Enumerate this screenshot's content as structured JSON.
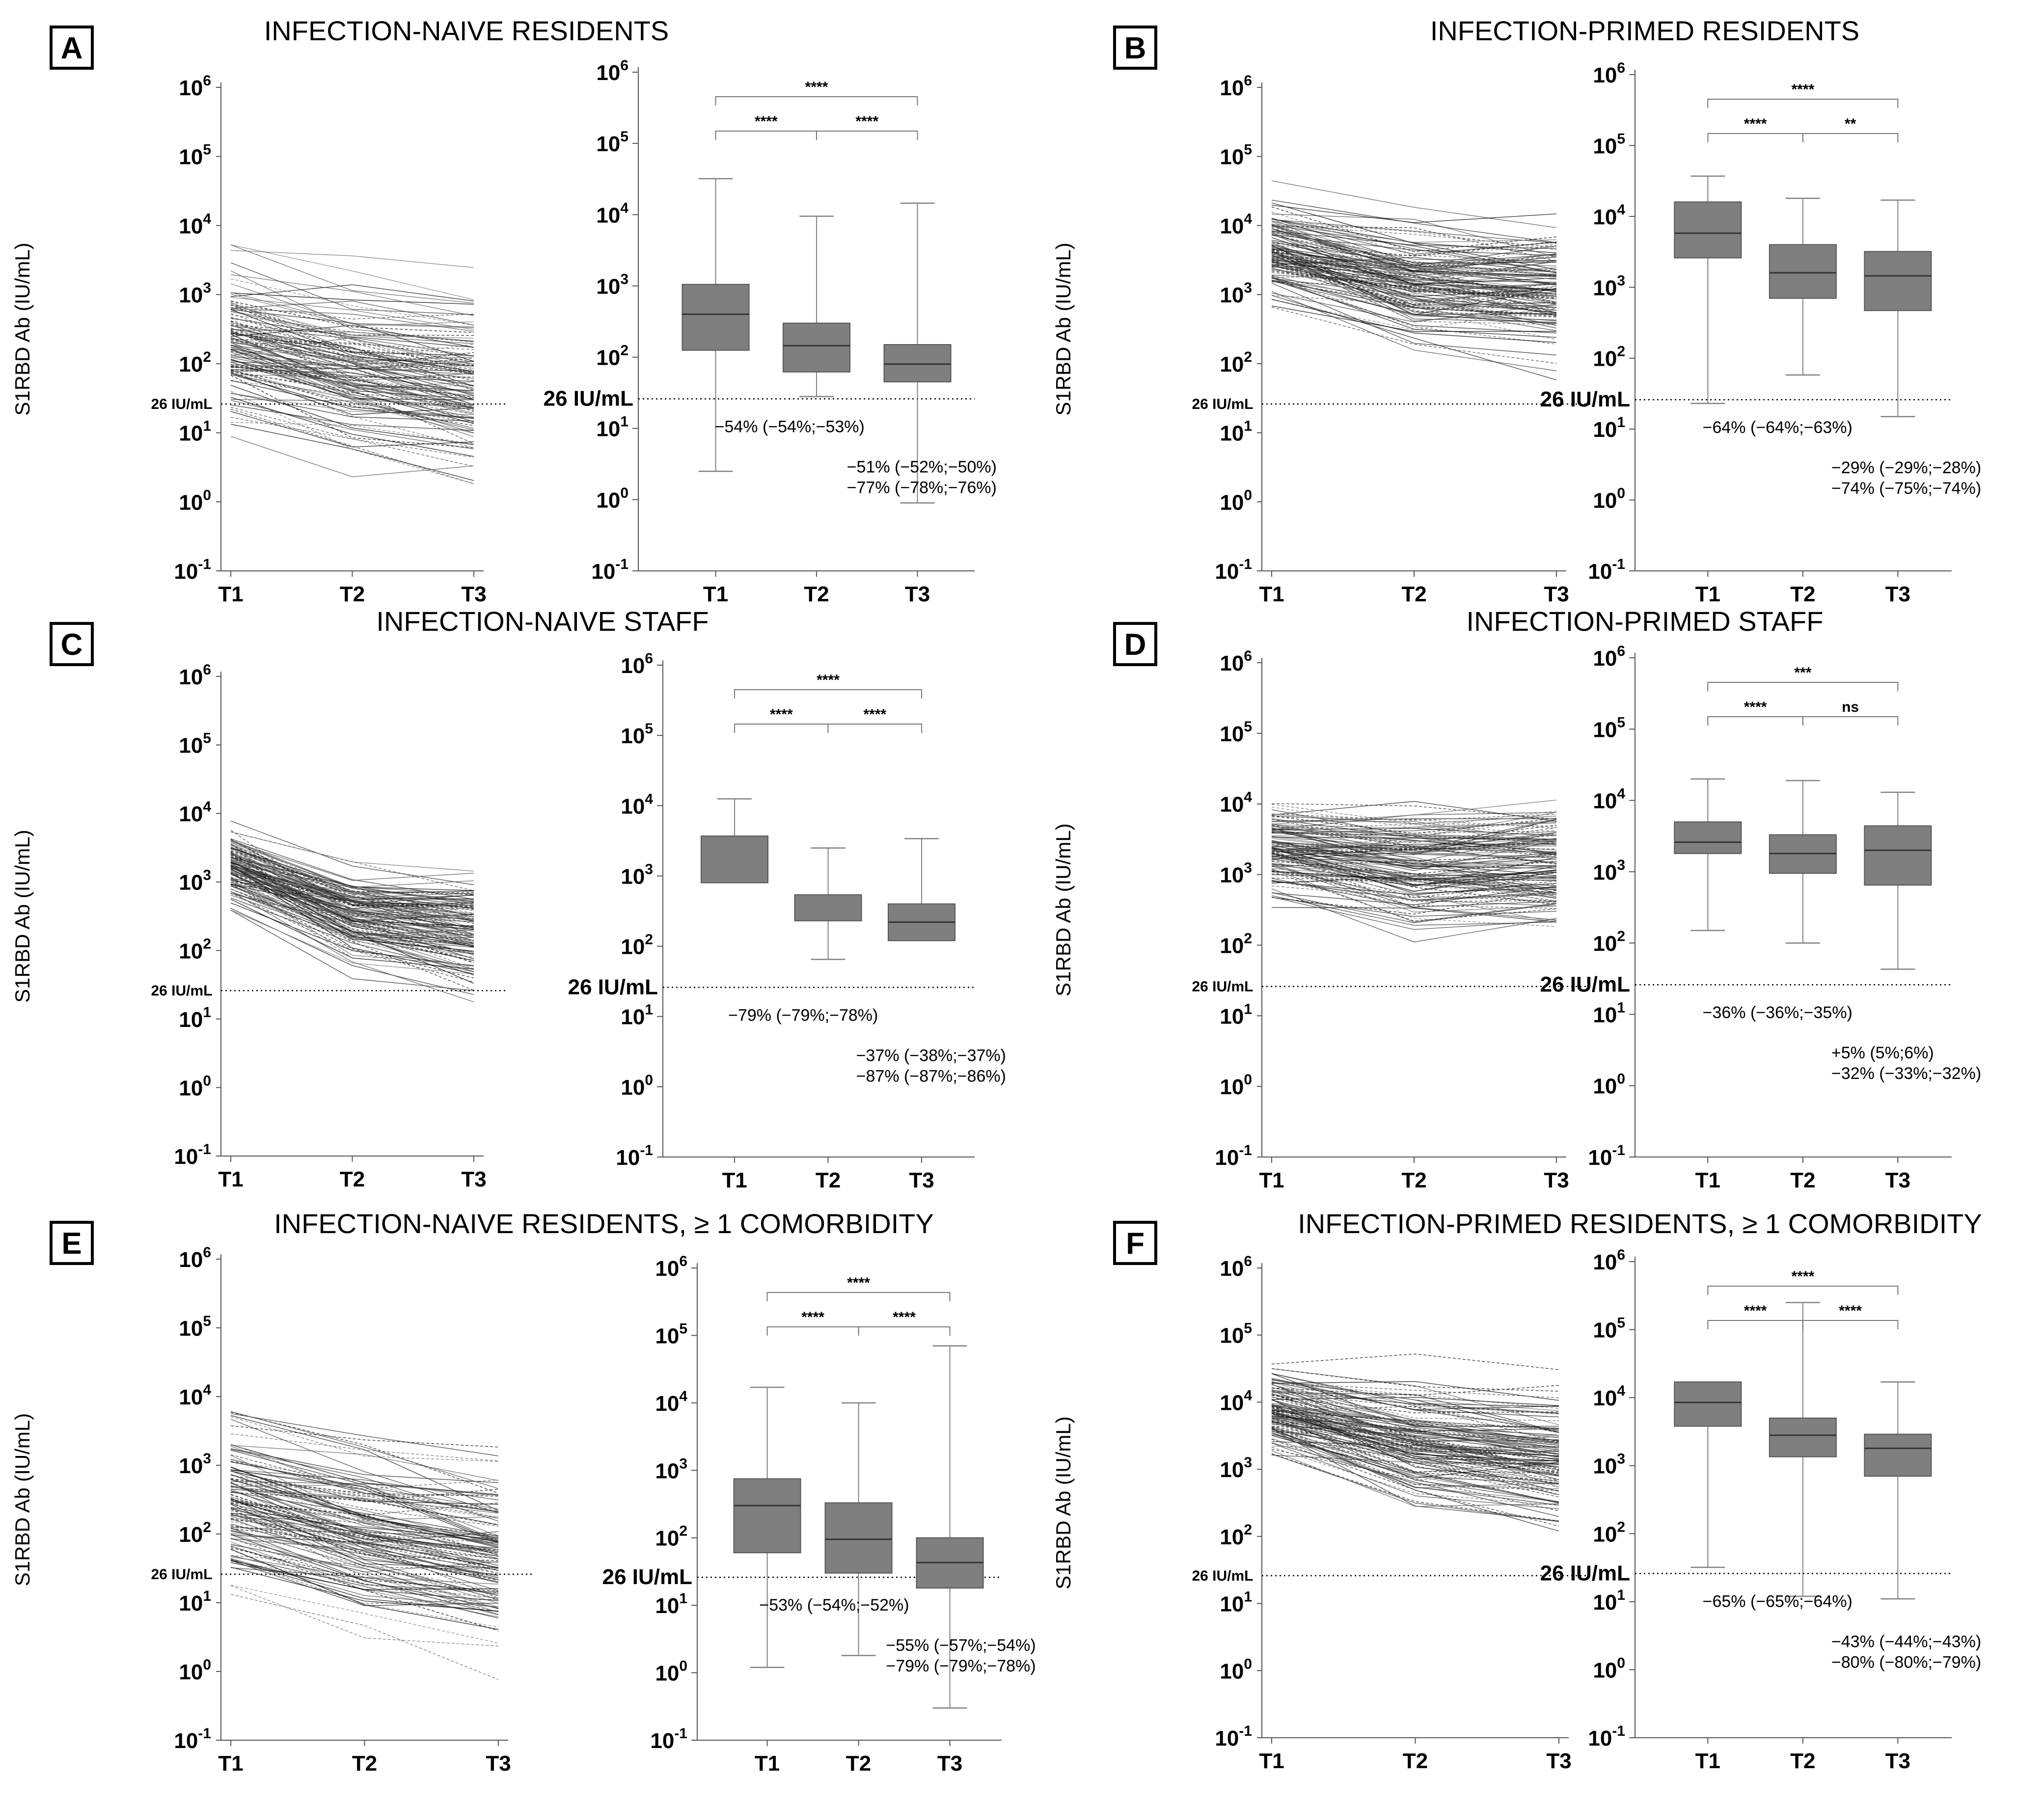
{
  "axis_label": "S1RBD Ab (IU/mL)",
  "threshold_label": "26 IU/mL",
  "time_points": [
    "T1",
    "T2",
    "T3"
  ],
  "y_ticks": [
    {
      "base": "10",
      "exp": "-1"
    },
    {
      "base": "10",
      "exp": "0"
    },
    {
      "base": "10",
      "exp": "1"
    },
    {
      "base": "10",
      "exp": "2"
    },
    {
      "base": "10",
      "exp": "3"
    },
    {
      "base": "10",
      "exp": "4"
    },
    {
      "base": "10",
      "exp": "5"
    },
    {
      "base": "10",
      "exp": "6"
    }
  ],
  "colors": {
    "box_fill": "#7f7f7f",
    "line": "#000000",
    "whisker": "#808080"
  },
  "chart_data": [
    {
      "panel": "A",
      "type": "box",
      "title": "INFECTION-NAIVE RESIDENTS",
      "ylim": [
        0.1,
        1000000
      ],
      "threshold": 26,
      "spaghetti": {
        "start": [
          180,
          1400
        ],
        "drift": [
          -0.42,
          -0.22
        ],
        "spread": 0.75
      },
      "boxes": [
        {
          "cat": "T1",
          "min": 2.5,
          "q1": 125,
          "median": 400,
          "q3": 1050,
          "max": 32000
        },
        {
          "cat": "T2",
          "min": 28,
          "q1": 62,
          "median": 145,
          "q3": 300,
          "max": 9500
        },
        {
          "cat": "T3",
          "min": 0.9,
          "q1": 45,
          "median": 80,
          "q3": 150,
          "max": 14500
        }
      ],
      "comparisons": [
        {
          "from": 0,
          "to": 1,
          "label": "****",
          "level": 0
        },
        {
          "from": 1,
          "to": 2,
          "label": "****",
          "level": 0
        },
        {
          "from": 0,
          "to": 2,
          "label": "****",
          "level": 1
        }
      ],
      "annotations": [
        "−54% (−54%;−53%)",
        "−51% (−52%;−50%)",
        "−77% (−78%;−76%)"
      ]
    },
    {
      "panel": "B",
      "type": "box",
      "title": "INFECTION-PRIMED RESIDENTS",
      "ylim": [
        0.1,
        1000000
      ],
      "threshold": 26,
      "spaghetti": {
        "start": [
          4500,
          1700
        ],
        "drift": [
          -0.45,
          -0.12
        ],
        "spread": 0.55
      },
      "boxes": [
        {
          "cat": "T1",
          "min": 23,
          "q1": 2600,
          "median": 5800,
          "q3": 16000,
          "max": 37000
        },
        {
          "cat": "T2",
          "min": 58,
          "q1": 700,
          "median": 1600,
          "q3": 4000,
          "max": 18000
        },
        {
          "cat": "T3",
          "min": 15,
          "q1": 470,
          "median": 1450,
          "q3": 3200,
          "max": 17000
        }
      ],
      "comparisons": [
        {
          "from": 0,
          "to": 1,
          "label": "****",
          "level": 0
        },
        {
          "from": 1,
          "to": 2,
          "label": "**",
          "level": 0
        },
        {
          "from": 0,
          "to": 2,
          "label": "****",
          "level": 1
        }
      ],
      "annotations": [
        "−64% (−64%;−63%)",
        "−29% (−29%;−28%)",
        "−74% (−75%;−74%)"
      ]
    },
    {
      "panel": "C",
      "type": "box",
      "title": "INFECTION-NAIVE STAFF",
      "ylim": [
        0.1,
        1000000
      ],
      "threshold": 26,
      "spaghetti": {
        "start": [
          1800,
          350
        ],
        "drift": [
          -0.72,
          -0.24
        ],
        "spread": 0.35
      },
      "boxes": [
        {
          "cat": "T1",
          "min": null,
          "q1": 800,
          "median": null,
          "q3": 3700,
          "max": 12500
        },
        {
          "cat": "T2",
          "min": 65,
          "q1": 230,
          "median": null,
          "q3": 540,
          "max": 2500
        },
        {
          "cat": "T3",
          "min": null,
          "q1": 120,
          "median": 220,
          "q3": 400,
          "max": 3400
        }
      ],
      "comparisons": [
        {
          "from": 0,
          "to": 1,
          "label": "****",
          "level": 0
        },
        {
          "from": 1,
          "to": 2,
          "label": "****",
          "level": 0
        },
        {
          "from": 0,
          "to": 2,
          "label": "****",
          "level": 1
        }
      ],
      "annotations": [
        "−79% (−79%;−78%)",
        "−37% (−38%;−37%)",
        "−87% (−87%;−86%)"
      ]
    },
    {
      "panel": "D",
      "type": "box",
      "title": "INFECTION-PRIMED STAFF",
      "ylim": [
        0.1,
        1000000
      ],
      "threshold": 26,
      "spaghetti": {
        "start": [
          2500,
          1900
        ],
        "drift": [
          -0.2,
          0.0
        ],
        "spread": 0.45
      },
      "boxes": [
        {
          "cat": "T1",
          "min": 150,
          "q1": 1800,
          "median": 2600,
          "q3": 5000,
          "max": 20000
        },
        {
          "cat": "T2",
          "min": 100,
          "q1": 950,
          "median": 1800,
          "q3": 3300,
          "max": 19000
        },
        {
          "cat": "T3",
          "min": 43,
          "q1": 650,
          "median": 2000,
          "q3": 4400,
          "max": 13000
        }
      ],
      "comparisons": [
        {
          "from": 0,
          "to": 1,
          "label": "****",
          "level": 0
        },
        {
          "from": 1,
          "to": 2,
          "label": "ns",
          "level": 0
        },
        {
          "from": 0,
          "to": 2,
          "label": "***",
          "level": 1
        }
      ],
      "annotations": [
        "−36% (−36%;−35%)",
        "+5% (5%;6%)",
        "−32% (−33%;−32%)"
      ]
    },
    {
      "panel": "E",
      "type": "box",
      "title": "INFECTION-NAIVE RESIDENTS, ≥ 1 COMORBIDITY",
      "ylim": [
        0.1,
        1000000
      ],
      "threshold": 26,
      "spaghetti": {
        "start": [
          300,
          650
        ],
        "drift": [
          -0.45,
          -0.33
        ],
        "spread": 0.8
      },
      "boxes": [
        {
          "cat": "T1",
          "min": 1.2,
          "q1": 60,
          "median": 300,
          "q3": 750,
          "max": 17000
        },
        {
          "cat": "T2",
          "min": 1.8,
          "q1": 30,
          "median": 95,
          "q3": 330,
          "max": 10000
        },
        {
          "cat": "T3",
          "min": 0.3,
          "q1": 18,
          "median": 43,
          "q3": 100,
          "max": 70000
        }
      ],
      "comparisons": [
        {
          "from": 0,
          "to": 1,
          "label": "****",
          "level": 0
        },
        {
          "from": 1,
          "to": 2,
          "label": "****",
          "level": 0
        },
        {
          "from": 0,
          "to": 2,
          "label": "****",
          "level": 1
        }
      ],
      "annotations": [
        "−53% (−54%;−52%)",
        "−55% (−57%;−54%)",
        "−79% (−79%;−78%)"
      ]
    },
    {
      "panel": "F",
      "type": "box",
      "title": "INFECTION-PRIMED RESIDENTS, ≥ 1 COMORBIDITY",
      "ylim": [
        0.1,
        1000000
      ],
      "threshold": 26,
      "spaghetti": {
        "start": [
          8000,
          2400
        ],
        "drift": [
          -0.48,
          -0.25
        ],
        "spread": 0.5
      },
      "boxes": [
        {
          "cat": "T1",
          "min": 32,
          "q1": 3800,
          "median": 8500,
          "q3": 17000,
          "max": null
        },
        {
          "cat": "T2",
          "min": 12,
          "q1": 1350,
          "median": 2800,
          "q3": 5000,
          "max": 250000
        },
        {
          "cat": "T3",
          "min": 11,
          "q1": 700,
          "median": 1800,
          "q3": 2900,
          "max": 17000
        }
      ],
      "comparisons": [
        {
          "from": 0,
          "to": 1,
          "label": "****",
          "level": 0
        },
        {
          "from": 1,
          "to": 2,
          "label": "****",
          "level": 0
        },
        {
          "from": 0,
          "to": 2,
          "label": "****",
          "level": 1
        }
      ],
      "annotations": [
        "−65% (−65%;−64%)",
        "−43% (−44%;−43%)",
        "−80% (−80%;−79%)"
      ]
    }
  ]
}
